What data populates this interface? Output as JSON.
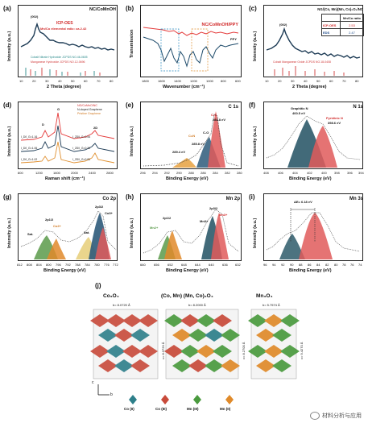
{
  "panels": {
    "a": {
      "label": "(a)",
      "title": "NC/CoMnOH",
      "ylabel": "Intensity (a.u.)",
      "xlabel": "2 Theta (degree)",
      "peak": "(002)",
      "icp": "ICP-OES",
      "ratio": "Mn/Co elemental ratio: ca.2.42",
      "ref1": "Cobalt Nitrate Hydroxide JCPDS NO.46-0605",
      "ref2": "Manganese Hydroxide JCPDS NO.12-0696",
      "xticks": [
        "10",
        "20",
        "30",
        "40",
        "50",
        "60",
        "70",
        "80"
      ]
    },
    "b": {
      "label": "(b)",
      "title": "NC/CoMnOH/PPY",
      "sub": "PPY",
      "ylabel": "Transmission",
      "xlabel": "Wavenumber (cm⁻¹)",
      "xticks": [
        "1800",
        "1600",
        "1400",
        "1200",
        "1000",
        "800",
        "600"
      ]
    },
    "c": {
      "label": "(c)",
      "title": "NG/(Co, Mn)(Mn, Co)₂O₄/NC",
      "peak": "(002)",
      "ylabel": "Intensity (a.u.)",
      "xlabel": "2 Theta (degree)",
      "table_head": [
        "",
        "Mn/Co ratio"
      ],
      "table_rows": [
        [
          "ICP-OES",
          "2.53"
        ],
        [
          "EDS",
          "2.47"
        ]
      ],
      "ref": "Cobalt Manganese Oxide JCPDS NO.18-0408",
      "xticks": [
        "10",
        "20",
        "30",
        "40",
        "50",
        "60",
        "70",
        "80"
      ]
    },
    "d": {
      "label": "(d)",
      "ylabel": "Intensity (a.u.)",
      "xlabel": "Raman shift (cm⁻¹)",
      "legend": [
        "NG/CoMnO/NC",
        "N-doped Graphene",
        "Pristine Graphene"
      ],
      "peaks": [
        "D",
        "G",
        "2D"
      ],
      "ratios_left": [
        "I_D/I_G=1.16",
        "I_D/I_G=1.06",
        "I_D/I_G=1.02"
      ],
      "ratios_right": [
        "I_2D/I_G=0.54",
        "I_2D/I_G=0.34",
        "I_2D/I_G=0.81"
      ],
      "xticks": [
        "800",
        "1200",
        "1600",
        "2000",
        "2400",
        "2800"
      ]
    },
    "e": {
      "label": "(e)",
      "title": "C 1s",
      "ylabel": "Intensity (a.u.)",
      "xlabel": "Binding Energy (eV)",
      "ann": [
        "C-C",
        "284.8 eV",
        "C-O",
        "285.8 eV",
        "C=N",
        "289.4 eV"
      ],
      "xticks": [
        "296",
        "294",
        "292",
        "290",
        "288",
        "286",
        "284",
        "282",
        "280"
      ]
    },
    "f": {
      "label": "(f)",
      "title": "N 1s",
      "ylabel": "Intensity (a.u.)",
      "xlabel": "Binding Energy (eV)",
      "ann": [
        "Graphitic N",
        "400.5 eV",
        "Pyridinic N",
        "398.6 eV"
      ],
      "xticks": [
        "408",
        "406",
        "404",
        "402",
        "400",
        "398",
        "396",
        "394"
      ]
    },
    "g": {
      "label": "(g)",
      "title": "Co 2p",
      "ylabel": "Intensity (a.u.)",
      "xlabel": "Binding Energy (eV)",
      "ann": [
        "2p1/2",
        "2p3/2",
        "Co2+",
        "Co3+",
        "Sat.",
        "Sat."
      ],
      "xticks": [
        "812",
        "808",
        "804",
        "800",
        "796",
        "792",
        "788",
        "784",
        "780",
        "776",
        "772"
      ]
    },
    "h": {
      "label": "(h)",
      "title": "Mn 2p",
      "ylabel": "Intensity (a.u.)",
      "xlabel": "Binding Energy (eV)",
      "ann": [
        "2p1/2",
        "2p3/2",
        "Mn2+",
        "Mn3+",
        "Mn3+"
      ],
      "xticks": [
        "660",
        "656",
        "652",
        "648",
        "644",
        "640",
        "636",
        "632"
      ]
    },
    "i": {
      "label": "(i)",
      "title": "Mn 3s",
      "ylabel": "Intensity (a.u.)",
      "xlabel": "Binding Energy (eV)",
      "ann": [
        "ΔE= 6.18 eV"
      ],
      "xticks": [
        "96",
        "94",
        "92",
        "90",
        "88",
        "86",
        "84",
        "82",
        "80",
        "78",
        "76",
        "74"
      ]
    },
    "j": {
      "label": "(j)",
      "titles": [
        "Co₃O₄",
        "(Co, Mn) (Mn, Co)₂O₄",
        "Mn₃O₄"
      ],
      "b_vals": [
        "b= 8.0720 Å",
        "b= 8.2000 Å",
        "b= 5.7574 Å"
      ],
      "c_vals": [
        "c= 8.0720 Å",
        "c= 8.2700 Å",
        "c= 9.4270 Å"
      ],
      "axes": [
        "c",
        "b"
      ],
      "legend": [
        "Co (II)",
        "Co (III)",
        "Mn (III)",
        "Mn (II)"
      ],
      "colors": [
        "#2d7f8a",
        "#c84a3a",
        "#4a9a3e",
        "#e08a2a"
      ]
    }
  },
  "watermark": "材料分析与应用"
}
